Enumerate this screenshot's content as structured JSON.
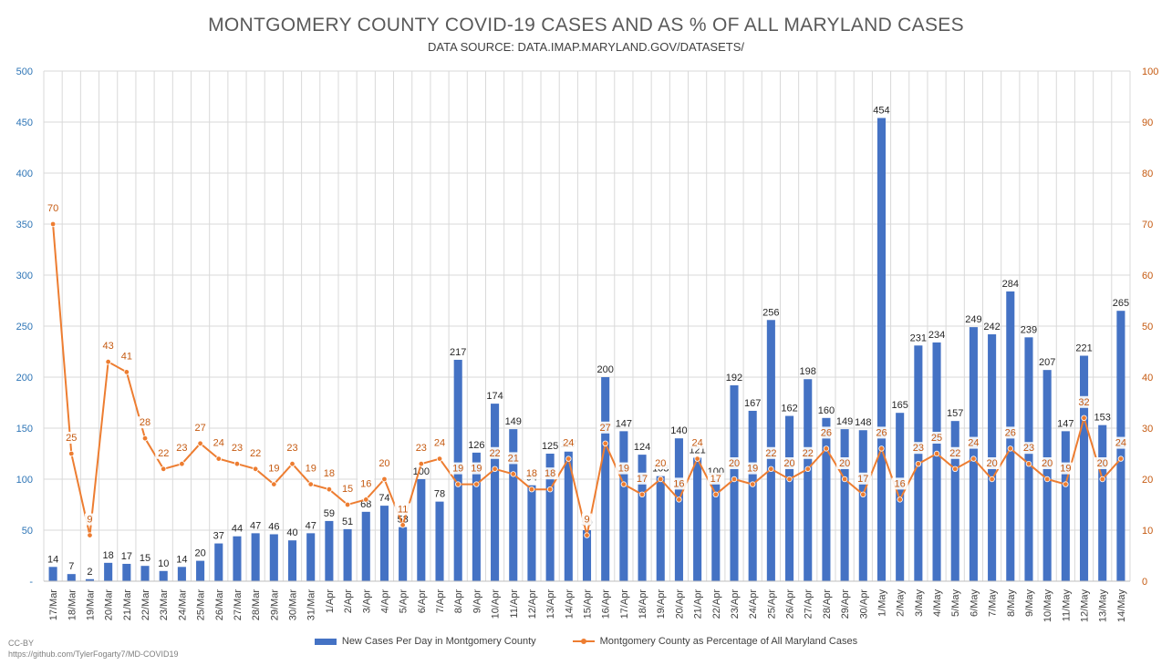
{
  "chart_data": {
    "type": "bar",
    "title": "MONTGOMERY COUNTY COVID-19 CASES AND AS % OF ALL MARYLAND CASES",
    "subtitle": "DATA SOURCE: DATA.IMAP.MARYLAND.GOV/DATASETS/",
    "categories": [
      "17/Mar",
      "18/Mar",
      "19/Mar",
      "20/Mar",
      "21/Mar",
      "22/Mar",
      "23/Mar",
      "24/Mar",
      "25/Mar",
      "26/Mar",
      "27/Mar",
      "28/Mar",
      "29/Mar",
      "30/Mar",
      "31/Mar",
      "1/Apr",
      "2/Apr",
      "3/Apr",
      "4/Apr",
      "5/Apr",
      "6/Apr",
      "7/Apr",
      "8/Apr",
      "9/Apr",
      "10/Apr",
      "11/Apr",
      "12/Apr",
      "13/Apr",
      "14/Apr",
      "15/Apr",
      "16/Apr",
      "17/Apr",
      "18/Apr",
      "19/Apr",
      "20/Apr",
      "21/Apr",
      "22/Apr",
      "23/Apr",
      "24/Apr",
      "25/Apr",
      "26/Apr",
      "27/Apr",
      "28/Apr",
      "29/Apr",
      "30/Apr",
      "1/May",
      "2/May",
      "3/May",
      "4/May",
      "5/May",
      "6/May",
      "7/May",
      "8/May",
      "9/May",
      "10/May",
      "11/May",
      "12/May",
      "13/May",
      "14/May"
    ],
    "series": [
      {
        "name": "New Cases Per Day in Montgomery County",
        "type": "bar",
        "axis": "left",
        "color": "#4472C4",
        "values": [
          14,
          7,
          2,
          18,
          17,
          15,
          10,
          14,
          20,
          37,
          44,
          47,
          46,
          40,
          47,
          59,
          51,
          68,
          74,
          53,
          100,
          78,
          217,
          126,
          174,
          149,
          94,
          125,
          127,
          50,
          200,
          147,
          124,
          103,
          140,
          121,
          100,
          192,
          167,
          256,
          162,
          198,
          160,
          149,
          148,
          454,
          165,
          231,
          234,
          157,
          249,
          242,
          284,
          239,
          207,
          147,
          221,
          153,
          265
        ]
      },
      {
        "name": "Montgomery County as Percentage of All Maryland Cases",
        "type": "line",
        "axis": "right",
        "color": "#ED7D31",
        "values": [
          70,
          25,
          9,
          43,
          41,
          28,
          22,
          23,
          27,
          24,
          23,
          22,
          19,
          23,
          19,
          18,
          15,
          16,
          20,
          11,
          23,
          24,
          19,
          19,
          22,
          21,
          18,
          18,
          24,
          9,
          27,
          19,
          17,
          20,
          16,
          24,
          17,
          20,
          19,
          22,
          20,
          22,
          26,
          20,
          17,
          26,
          16,
          23,
          25,
          22,
          24,
          20,
          26,
          23,
          20,
          19,
          32,
          20,
          24
        ]
      }
    ],
    "y_left": {
      "min": 0,
      "max": 500,
      "step": 50,
      "tick_labels": [
        "-",
        "50",
        "100",
        "150",
        "200",
        "250",
        "300",
        "350",
        "400",
        "450",
        "500"
      ],
      "color": "#2E75B6"
    },
    "y_right": {
      "min": 0,
      "max": 100,
      "step": 10,
      "tick_labels": [
        "0",
        "10",
        "20",
        "30",
        "40",
        "50",
        "60",
        "70",
        "80",
        "90",
        "100"
      ],
      "color": "#C55A11"
    },
    "grid": true,
    "legend_position": "bottom"
  },
  "credits": {
    "license": "CC-BY",
    "url": "https://github.com/TylerFogarty7/MD-COVID19"
  }
}
